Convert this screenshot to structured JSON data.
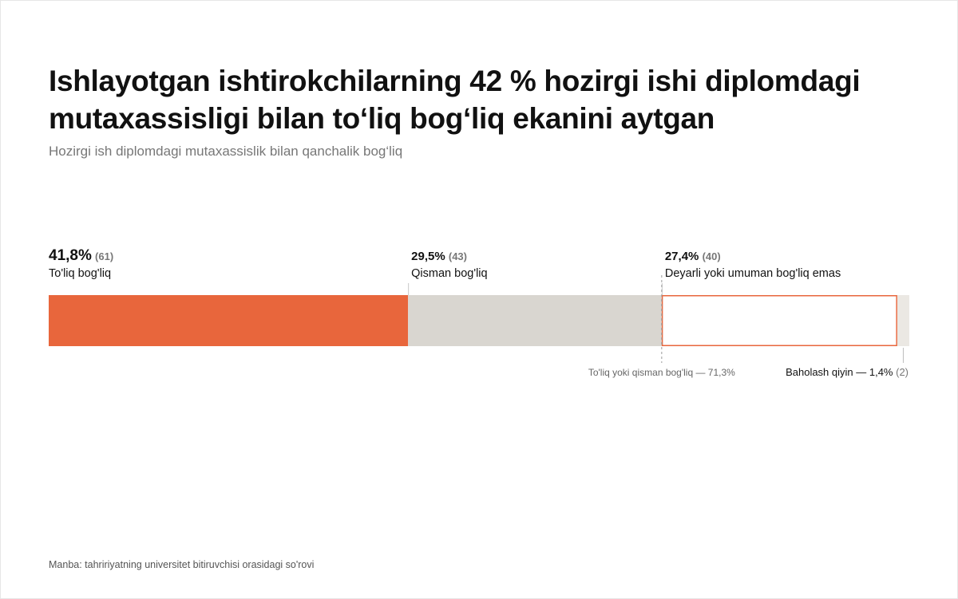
{
  "title": "Ishlayotgan ishtirokchilarning 42 % hozirgi ishi diplomdagi mutaxassisligi bilan to‘liq bog‘liq ekanini aytgan",
  "subtitle": "Hozirgi ish diplomdagi mutaxassislik bilan qanchalik bog‘liq",
  "source": "Manba: tahririyatning universitet bitiruvchisi orasidagi so'rovi",
  "colors": {
    "full": "#e8663c",
    "partial": "#d9d6d0",
    "none_fill": "#ffffff",
    "none_stroke": "#e8663c",
    "hard": "#ebe8e3"
  },
  "chart_data": {
    "type": "bar",
    "stacked": true,
    "orientation": "horizontal",
    "segments": [
      {
        "key": "full",
        "pct_label": "41,8%",
        "value": 41.8,
        "count_label": "(61)",
        "count": 61,
        "label": "To'liq bog'liq",
        "style": "filled"
      },
      {
        "key": "partial",
        "pct_label": "29,5%",
        "value": 29.5,
        "count_label": "(43)",
        "count": 43,
        "label": "Qisman bog'liq",
        "style": "filled"
      },
      {
        "key": "none",
        "pct_label": "27,4%",
        "value": 27.4,
        "count_label": "(40)",
        "count": 40,
        "label": "Deyarli yoki umuman bog'liq emas",
        "style": "outlined"
      },
      {
        "key": "hard",
        "value": 1.4,
        "count": 2,
        "label": "Baholash qiyin",
        "style": "filled"
      }
    ],
    "annotations": {
      "cumulative_note": "To'liq yoki qisman bog'liq — 71,3%",
      "cumulative_value": 71.3,
      "hard_note_text": "Baholash qiyin — 1,4% ",
      "hard_note_count": "(2)"
    }
  }
}
